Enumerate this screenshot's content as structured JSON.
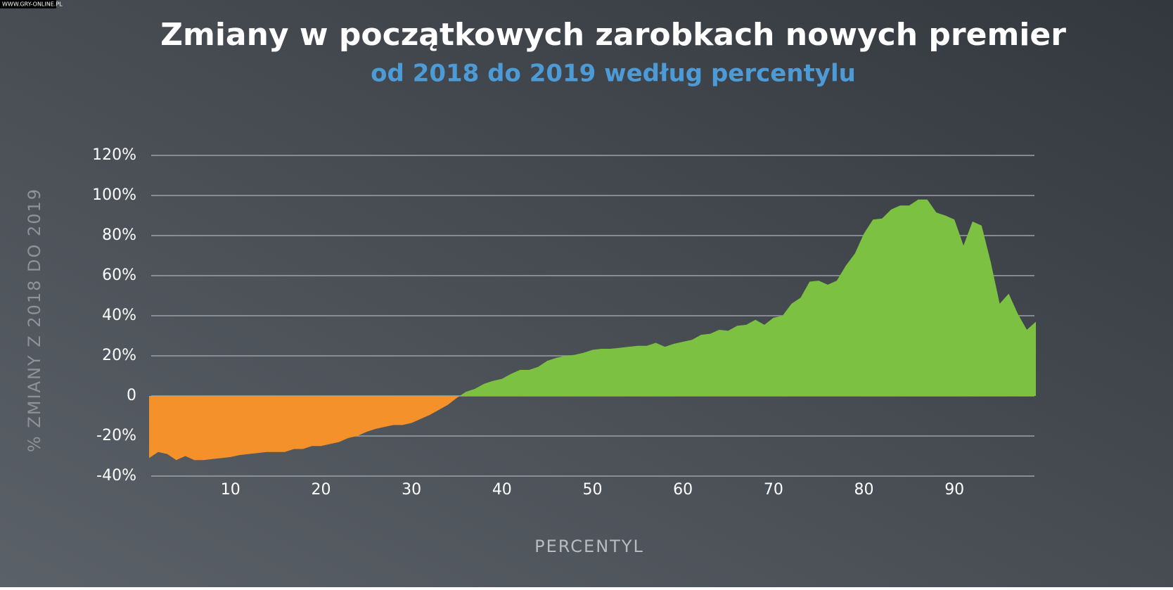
{
  "chart_data": {
    "type": "area",
    "watermark": "WWW.GRY-ONLINE.PL",
    "title": "Zmiany w początkowych zarobkach nowych premier",
    "subtitle": "od 2018 do 2019 według percentylu",
    "x_label": "PERCENTYL",
    "y_label": "% ZMIANY Z 2018 DO 2019",
    "x": [
      1,
      2,
      3,
      4,
      5,
      6,
      7,
      8,
      9,
      10,
      11,
      12,
      13,
      14,
      15,
      16,
      17,
      18,
      19,
      20,
      21,
      22,
      23,
      24,
      25,
      26,
      27,
      28,
      29,
      30,
      31,
      32,
      33,
      34,
      35,
      36,
      37,
      38,
      39,
      40,
      41,
      42,
      43,
      44,
      45,
      46,
      47,
      48,
      49,
      50,
      51,
      52,
      53,
      54,
      55,
      56,
      57,
      58,
      59,
      60,
      61,
      62,
      63,
      64,
      65,
      66,
      67,
      68,
      69,
      70,
      71,
      72,
      73,
      74,
      75,
      76,
      77,
      78,
      79,
      80,
      81,
      82,
      83,
      84,
      85,
      86,
      87,
      88,
      89,
      90,
      91,
      92,
      93,
      94,
      95,
      96,
      97,
      98,
      99
    ],
    "values": [
      -31,
      -28,
      -29,
      -32,
      -30,
      -32,
      -32,
      -31.5,
      -31,
      -30.5,
      -29.5,
      -29,
      -28.5,
      -28,
      -28,
      -28,
      -26.5,
      -26.5,
      -25,
      -25,
      -24,
      -23,
      -21,
      -20,
      -18,
      -16.5,
      -15.5,
      -14.5,
      -14.5,
      -13.5,
      -11.5,
      -9.5,
      -7,
      -4.5,
      -1,
      2,
      3.5,
      6,
      7.5,
      8.5,
      11,
      13,
      13,
      14.5,
      17.5,
      19,
      20,
      20.5,
      21.5,
      23,
      23.5,
      23.5,
      24,
      24.5,
      25,
      25,
      26.5,
      24.5,
      26,
      27,
      28,
      30.5,
      31,
      33,
      32.5,
      35,
      35.5,
      38,
      35.5,
      39,
      40,
      46,
      49,
      57,
      57.5,
      55.5,
      57.5,
      65,
      71,
      81,
      88,
      88.5,
      93,
      95,
      95,
      98,
      98,
      91.5,
      90,
      88,
      75,
      87,
      85,
      67,
      46,
      51,
      41,
      33,
      37
    ],
    "color": "#7dc142",
    "negative_color": "#f5912a",
    "xlim": [
      1,
      99
    ],
    "ylim": [
      -40,
      120
    ],
    "xticks": [
      10,
      20,
      30,
      40,
      50,
      60,
      70,
      80,
      90
    ],
    "yticks": [
      {
        "value": -40,
        "label": "-40%"
      },
      {
        "value": -20,
        "label": "-20%"
      },
      0,
      {
        "value": 20,
        "label": "20%"
      },
      {
        "value": 40,
        "label": "40%"
      },
      {
        "value": 60,
        "label": "60%"
      },
      {
        "value": 80,
        "label": "80%"
      },
      {
        "value": 100,
        "label": "100%"
      },
      {
        "value": 120,
        "label": "120%"
      }
    ],
    "grid": true
  }
}
